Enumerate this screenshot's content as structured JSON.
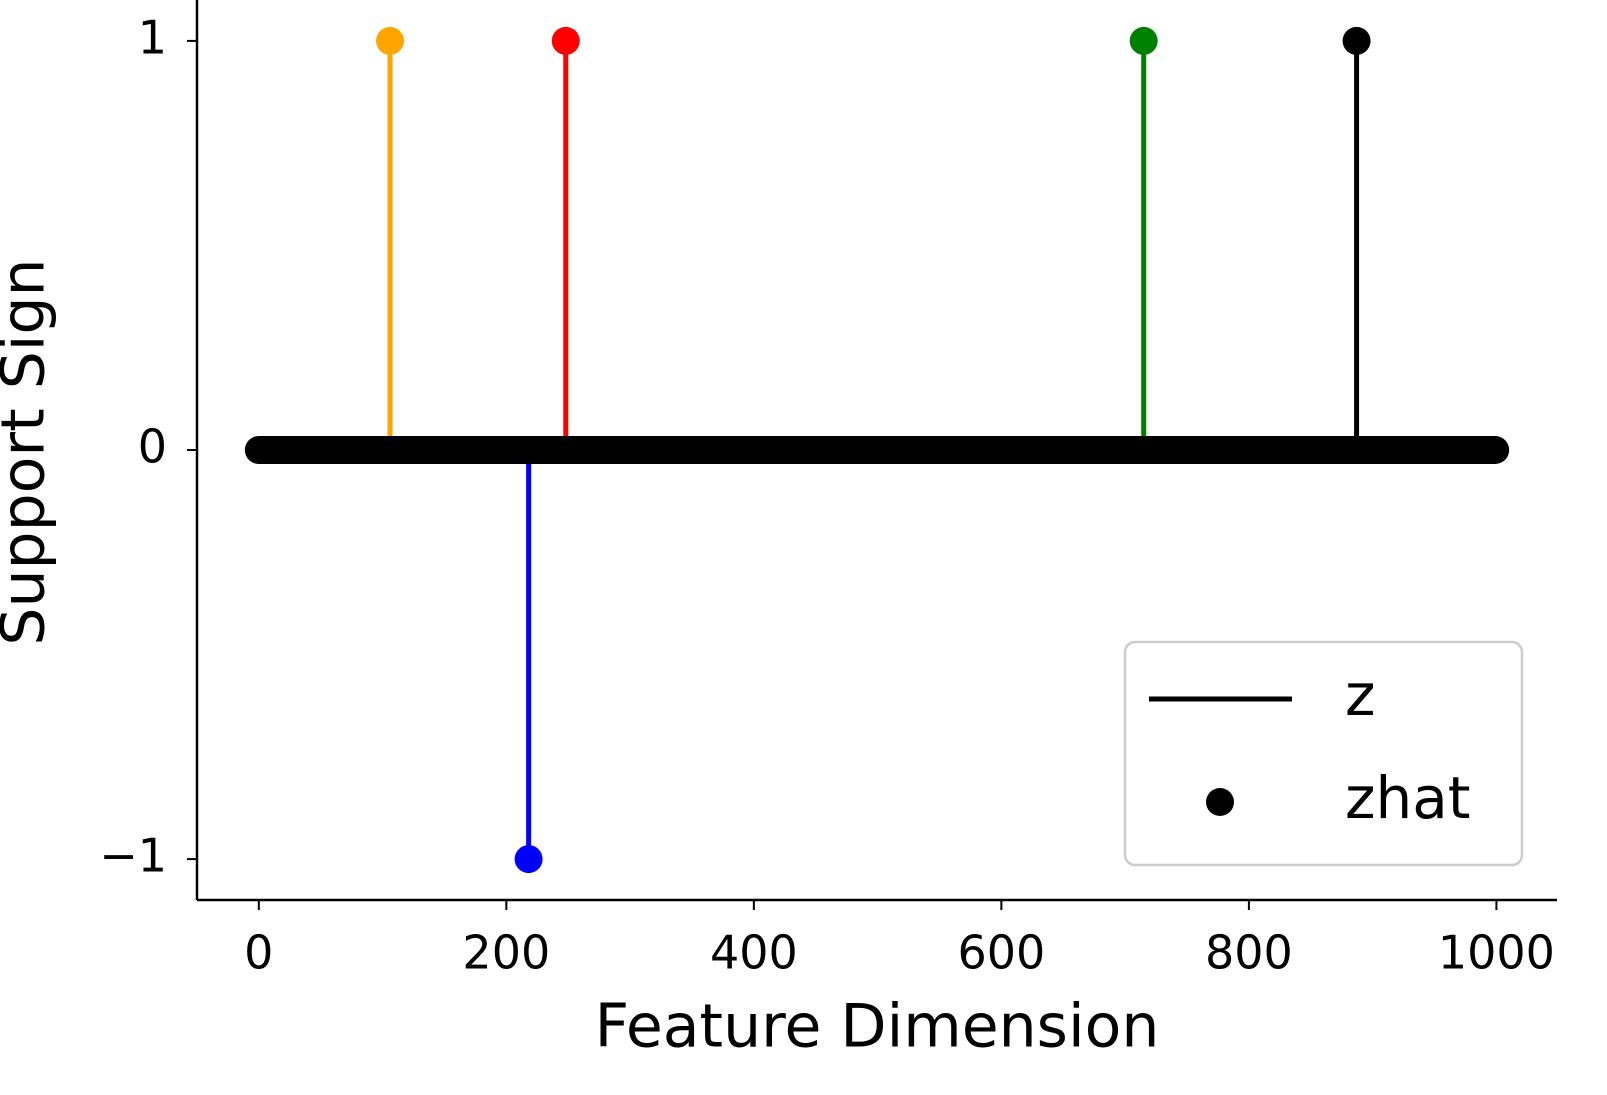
{
  "chart_data": {
    "type": "stem",
    "xlabel": "Feature Dimension",
    "ylabel": "Support Sign",
    "xlim": [
      -49.95,
      1048.95
    ],
    "ylim": [
      -1.1,
      1.1
    ],
    "xticks": [
      0,
      200,
      400,
      600,
      800,
      1000
    ],
    "yticks": [
      {
        "value": -1,
        "label": "−1"
      },
      0,
      1
    ],
    "baseline": {
      "x": [
        0,
        999
      ],
      "values": [
        0,
        0
      ],
      "color": "#000000"
    },
    "series": [
      {
        "name": "z",
        "x": [
          106,
          218,
          248,
          715,
          887
        ],
        "values": [
          1,
          -1,
          1,
          1,
          1
        ],
        "colors": [
          "#ffa500",
          "#0000ff",
          "#ff0000",
          "#008000",
          "#000000"
        ],
        "color": "#000000"
      },
      {
        "name": "zhat",
        "x": [
          106,
          218,
          248,
          715,
          887
        ],
        "values": [
          1,
          -1,
          1,
          1,
          1
        ],
        "colors": [
          "#ffa500",
          "#0000ff",
          "#ff0000",
          "#008000",
          "#000000"
        ],
        "color": "#000000"
      }
    ],
    "legend": "lower right"
  }
}
